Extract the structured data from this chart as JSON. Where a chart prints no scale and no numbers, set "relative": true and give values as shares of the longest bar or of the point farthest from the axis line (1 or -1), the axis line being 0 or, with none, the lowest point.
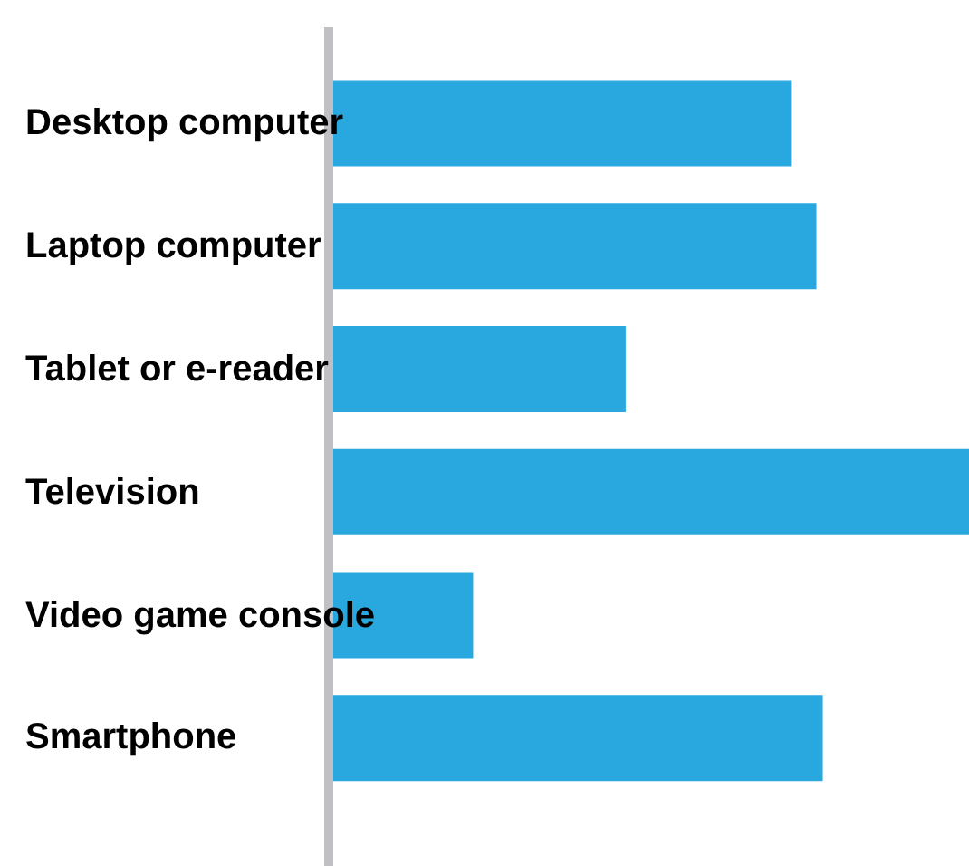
{
  "chart_data": {
    "type": "bar",
    "orientation": "horizontal",
    "relative": true,
    "categories": [
      "Desktop computer",
      "Laptop computer",
      "Tablet or e-reader",
      "Television",
      "Video game console",
      "Smartphone"
    ],
    "values": [
      0.72,
      0.76,
      0.46,
      1,
      0.22,
      0.77
    ],
    "color": "#29a8e0",
    "legend": false
  }
}
